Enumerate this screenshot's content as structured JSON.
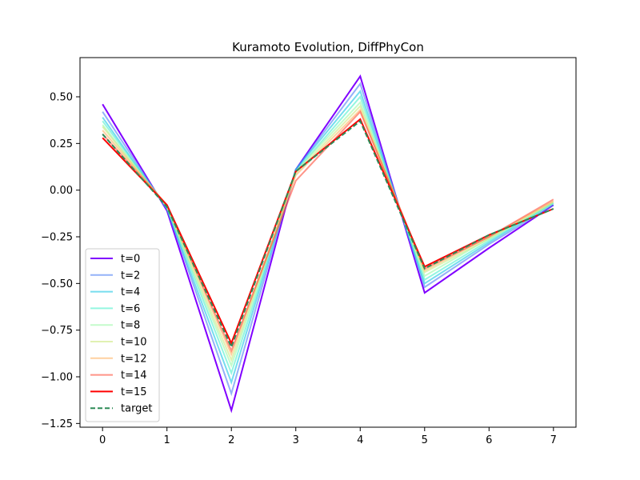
{
  "chart_data": {
    "type": "line",
    "title": "Kuramoto Evolution, DiffPhyCon",
    "xlabel": "",
    "ylabel": "",
    "x": [
      0,
      1,
      2,
      3,
      4,
      5,
      6,
      7
    ],
    "xlim": [
      -0.35,
      7.35
    ],
    "ylim": [
      -1.27,
      0.71
    ],
    "xticks": [
      "0",
      "1",
      "2",
      "3",
      "4",
      "5",
      "6",
      "7"
    ],
    "yticks": [
      0.5,
      0.25,
      0.0,
      -0.25,
      -0.5,
      -0.75,
      -1.0,
      -1.25
    ],
    "ytick_labels": [
      "0.50",
      "0.25",
      "0.00",
      "−0.25",
      "−0.50",
      "−0.75",
      "−1.00",
      "−1.25"
    ],
    "grid": false,
    "legend_position": "lower-left",
    "series": [
      {
        "name": "t=0",
        "color": "#8000ff",
        "alpha": 1.0,
        "dashed": false,
        "values": [
          0.46,
          -0.11,
          -1.18,
          0.11,
          0.61,
          -0.55,
          -0.31,
          -0.08
        ]
      },
      {
        "name": "t=2",
        "color": "#4d7ff4",
        "alpha": 0.6,
        "dashed": false,
        "values": [
          0.42,
          -0.1,
          -1.09,
          0.11,
          0.57,
          -0.52,
          -0.29,
          -0.08
        ]
      },
      {
        "name": "t=4",
        "color": "#1ac7e4",
        "alpha": 0.6,
        "dashed": false,
        "values": [
          0.39,
          -0.1,
          -1.03,
          0.11,
          0.53,
          -0.5,
          -0.28,
          -0.07
        ]
      },
      {
        "name": "t=6",
        "color": "#4cf0cb",
        "alpha": 0.6,
        "dashed": false,
        "values": [
          0.37,
          -0.09,
          -0.98,
          0.1,
          0.5,
          -0.48,
          -0.27,
          -0.07
        ]
      },
      {
        "name": "t=8",
        "color": "#9cf8a8",
        "alpha": 0.6,
        "dashed": false,
        "values": [
          0.35,
          -0.09,
          -0.94,
          0.1,
          0.47,
          -0.46,
          -0.26,
          -0.07
        ]
      },
      {
        "name": "t=10",
        "color": "#cde87e",
        "alpha": 0.6,
        "dashed": false,
        "values": [
          0.34,
          -0.09,
          -0.91,
          0.09,
          0.45,
          -0.44,
          -0.26,
          -0.06
        ]
      },
      {
        "name": "t=12",
        "color": "#ffb360",
        "alpha": 0.6,
        "dashed": false,
        "values": [
          0.32,
          -0.08,
          -0.88,
          0.08,
          0.43,
          -0.43,
          -0.25,
          -0.06
        ]
      },
      {
        "name": "t=14",
        "color": "#ff4d38",
        "alpha": 0.6,
        "dashed": false,
        "values": [
          0.3,
          -0.08,
          -0.86,
          0.05,
          0.42,
          -0.42,
          -0.25,
          -0.05
        ]
      },
      {
        "name": "t=15",
        "color": "#ff0000",
        "alpha": 1.0,
        "dashed": false,
        "values": [
          0.28,
          -0.08,
          -0.82,
          0.1,
          0.38,
          -0.41,
          -0.24,
          -0.1
        ]
      },
      {
        "name": "target",
        "color": "#2e8b57",
        "alpha": 1.0,
        "dashed": true,
        "values": [
          0.3,
          -0.09,
          -0.84,
          0.1,
          0.37,
          -0.42,
          -0.24,
          -0.1
        ]
      }
    ]
  }
}
